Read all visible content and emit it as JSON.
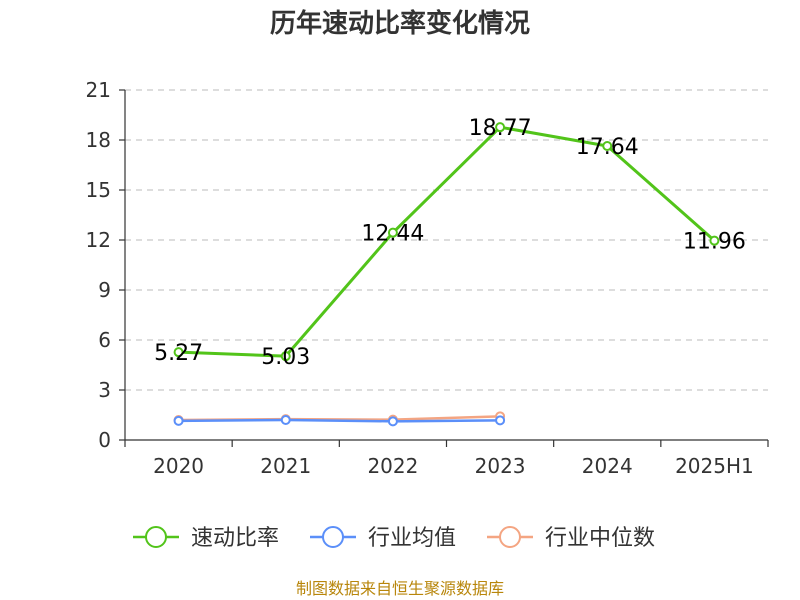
{
  "chart_data": {
    "type": "line",
    "title": "历年速动比率变化情况",
    "categories": [
      "2020",
      "2021",
      "2022",
      "2023",
      "2024",
      "2025H1"
    ],
    "ylim": [
      0,
      21
    ],
    "yticks": [
      0,
      3,
      6,
      9,
      12,
      15,
      18,
      21
    ],
    "grid": true,
    "legend_position": "bottom",
    "series": [
      {
        "name": "速动比率",
        "color": "#52c41a",
        "values": [
          5.27,
          5.03,
          12.44,
          18.77,
          17.64,
          11.96
        ],
        "labels": [
          "5.27",
          "5.03",
          "12.44",
          "18.77",
          "17.64",
          "11.96"
        ]
      },
      {
        "name": "行业均值",
        "color": "#5b8ff9",
        "values": [
          1.15,
          1.2,
          1.12,
          1.18,
          null,
          null
        ]
      },
      {
        "name": "行业中位数",
        "color": "#f4a582",
        "values": [
          1.2,
          1.25,
          1.22,
          1.42,
          null,
          null
        ]
      }
    ]
  },
  "source_text": "制图数据来自恒生聚源数据库"
}
